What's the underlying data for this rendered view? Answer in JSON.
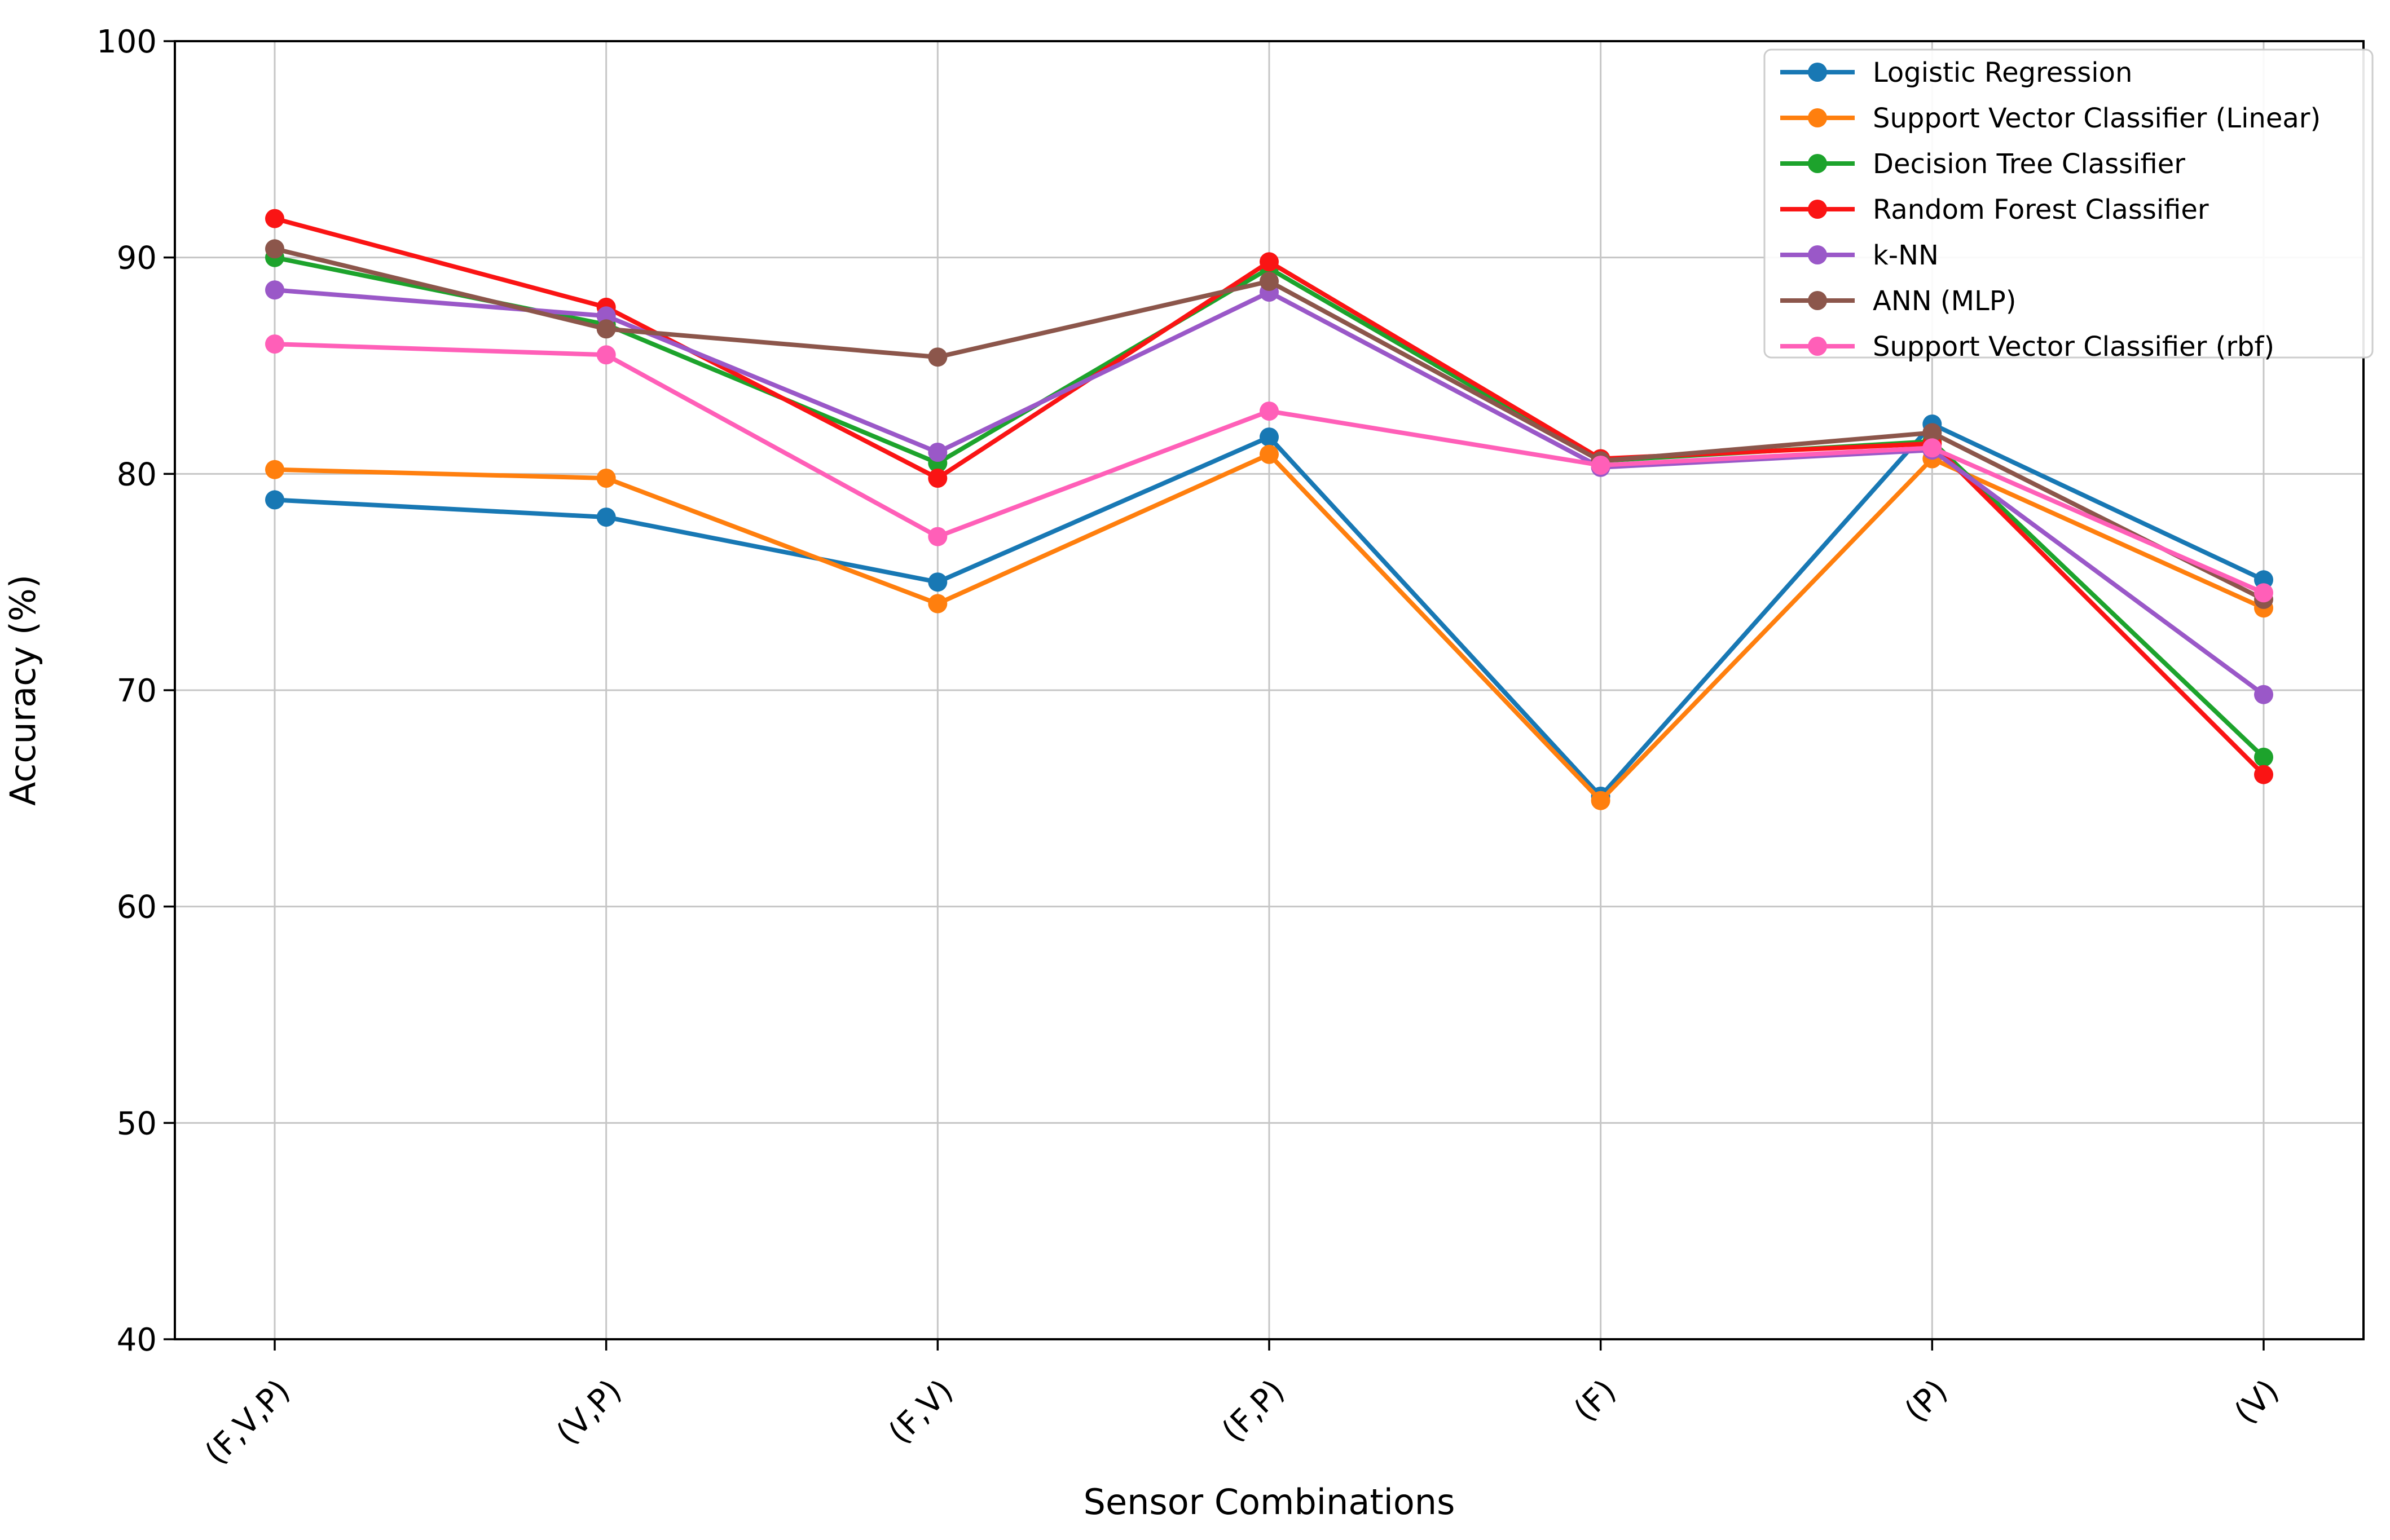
{
  "figure": {
    "background": "#ffffff",
    "frame_color": "#000000",
    "grid_color": "#c6c6c6",
    "legend_border_color": "#cccccc",
    "legend_background": "#ffffff"
  },
  "chart_data": {
    "type": "line",
    "title": "",
    "xlabel": "Sensor Combinations",
    "ylabel": "Accuracy (%)",
    "ylim": [
      40,
      100
    ],
    "yticks": [
      40,
      50,
      60,
      70,
      80,
      90,
      100
    ],
    "grid": true,
    "legend_position": "upper right",
    "categories": [
      "(F,V,P)",
      "(V,P)",
      "(F,V)",
      "(F,P)",
      "(F)",
      "(P)",
      "(V)"
    ],
    "series": [
      {
        "name": "Logistic Regression",
        "color": "#1878b4",
        "values": [
          78.8,
          78.0,
          75.0,
          81.7,
          65.1,
          82.3,
          75.1
        ]
      },
      {
        "name": "Support Vector Classifier (Linear)",
        "color": "#ff7f0e",
        "values": [
          80.2,
          79.8,
          74.0,
          80.9,
          64.9,
          80.7,
          73.8
        ]
      },
      {
        "name": "Decision Tree Classifier",
        "color": "#1da32c",
        "values": [
          90.0,
          86.9,
          80.5,
          89.5,
          80.6,
          81.5,
          66.9
        ]
      },
      {
        "name": "Random Forest Classifier",
        "color": "#fa1414",
        "values": [
          91.8,
          87.7,
          79.8,
          89.8,
          80.7,
          81.4,
          66.1
        ]
      },
      {
        "name": "k-NN",
        "color": "#9a58c8",
        "values": [
          88.5,
          87.3,
          81.0,
          88.4,
          80.3,
          81.1,
          69.8
        ]
      },
      {
        "name": "ANN (MLP)",
        "color": "#8c564b",
        "values": [
          90.4,
          86.7,
          85.4,
          88.9,
          80.6,
          81.9,
          74.2
        ]
      },
      {
        "name": "Support Vector Classifier (rbf)",
        "color": "#ff5fb8",
        "values": [
          86.0,
          85.5,
          77.1,
          82.9,
          80.4,
          81.2,
          74.5
        ]
      }
    ]
  }
}
